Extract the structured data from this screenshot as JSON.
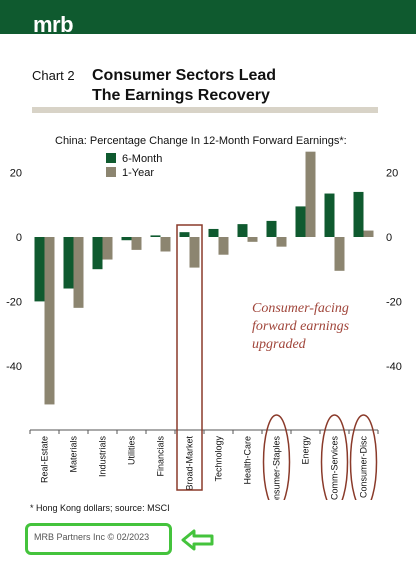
{
  "header": {
    "brand": "mrb"
  },
  "figure": {
    "chart_number": "Chart 2",
    "title_line1": "Consumer Sectors Lead",
    "title_line2": "The Earnings Recovery"
  },
  "annotation": {
    "line1": "Consumer-facing",
    "line2": "forward earnings",
    "line3": "upgraded"
  },
  "footnote": "* Hong Kong dollars; source: MSCI",
  "copyright": "MRB Partners Inc © 02/2023",
  "colors": {
    "six_month": "#0f5a2f",
    "one_year": "#8c8570",
    "highlight_box": "#8a3a2a",
    "copyright_box": "#44c33c",
    "brand": "#0f5a2f"
  },
  "chart_data": {
    "type": "bar",
    "title": "China: Percentage Change In 12-Month Forward Earnings*:",
    "categories": [
      "Real-Estate",
      "Materials",
      "Industrials",
      "Utilities",
      "Financials",
      "Broad-Market",
      "Technology",
      "Health-Care",
      "Consumer-Staples",
      "Energy",
      "Comm-Services",
      "Consumer-Disc"
    ],
    "series": [
      {
        "name": "6-Month",
        "values": [
          -20,
          -16,
          -10,
          -1,
          0.5,
          1.5,
          2.5,
          4,
          5,
          9.5,
          13.5,
          14
        ]
      },
      {
        "name": "1-Year",
        "values": [
          -52,
          -22,
          -7,
          -4,
          -4.5,
          -9.5,
          -5.5,
          -1.5,
          -3,
          26.5,
          -10.5,
          2
        ]
      }
    ],
    "y_ticks": [
      20,
      0,
      -20,
      -40
    ],
    "ylim": [
      -53,
      27
    ],
    "legend_position": "top-left",
    "highlighted": [
      "Broad-Market"
    ],
    "circled": [
      "Consumer-Staples",
      "Comm-Services",
      "Consumer-Disc"
    ]
  }
}
